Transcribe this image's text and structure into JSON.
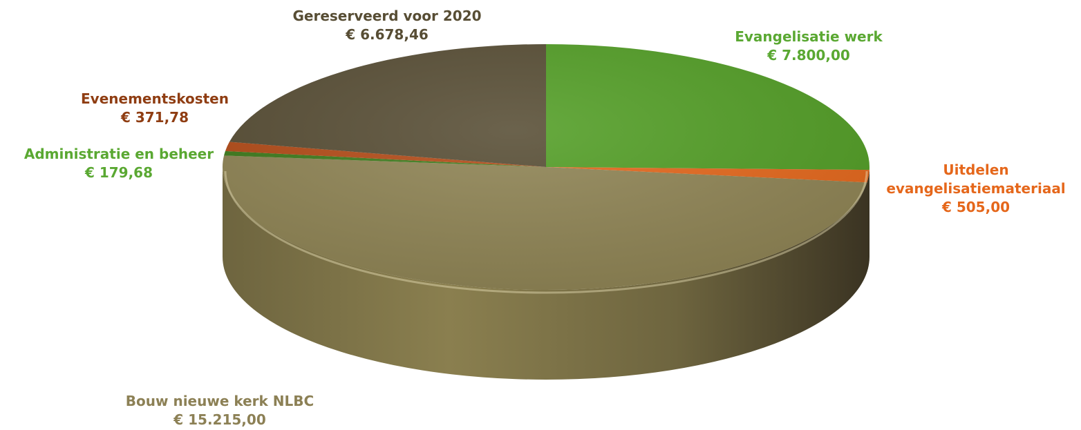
{
  "chart_data": {
    "type": "pie",
    "title": "",
    "currency": "€",
    "slices": [
      {
        "label": "Evangelisatie werk",
        "value": 7800.0,
        "value_label": "€ 7.800,00",
        "color": "#529e25",
        "label_color": "#5aa832"
      },
      {
        "label": "Uitdelen evangelisatiemateriaal",
        "value": 505.0,
        "value_label": "€ 505,00",
        "color": "#e5671b",
        "label_color": "#e5671b"
      },
      {
        "label": "Bouw nieuwe kerk NLBC",
        "value": 15215.0,
        "value_label": "€ 15.215,00",
        "color": "#8f8454",
        "label_color": "#8c8055"
      },
      {
        "label": "Administratie en beheer",
        "value": 179.68,
        "value_label": "€ 179,68",
        "color": "#3c7a1a",
        "label_color": "#5aa832"
      },
      {
        "label": "Evenementskosten",
        "value": 371.78,
        "value_label": "€ 371,78",
        "color": "#b34a16",
        "label_color": "#8f3d12"
      },
      {
        "label": "Gereserveerd voor 2020",
        "value": 6678.46,
        "value_label": "€ 6.678,46",
        "color": "#574d34",
        "label_color": "#574d34"
      }
    ]
  }
}
